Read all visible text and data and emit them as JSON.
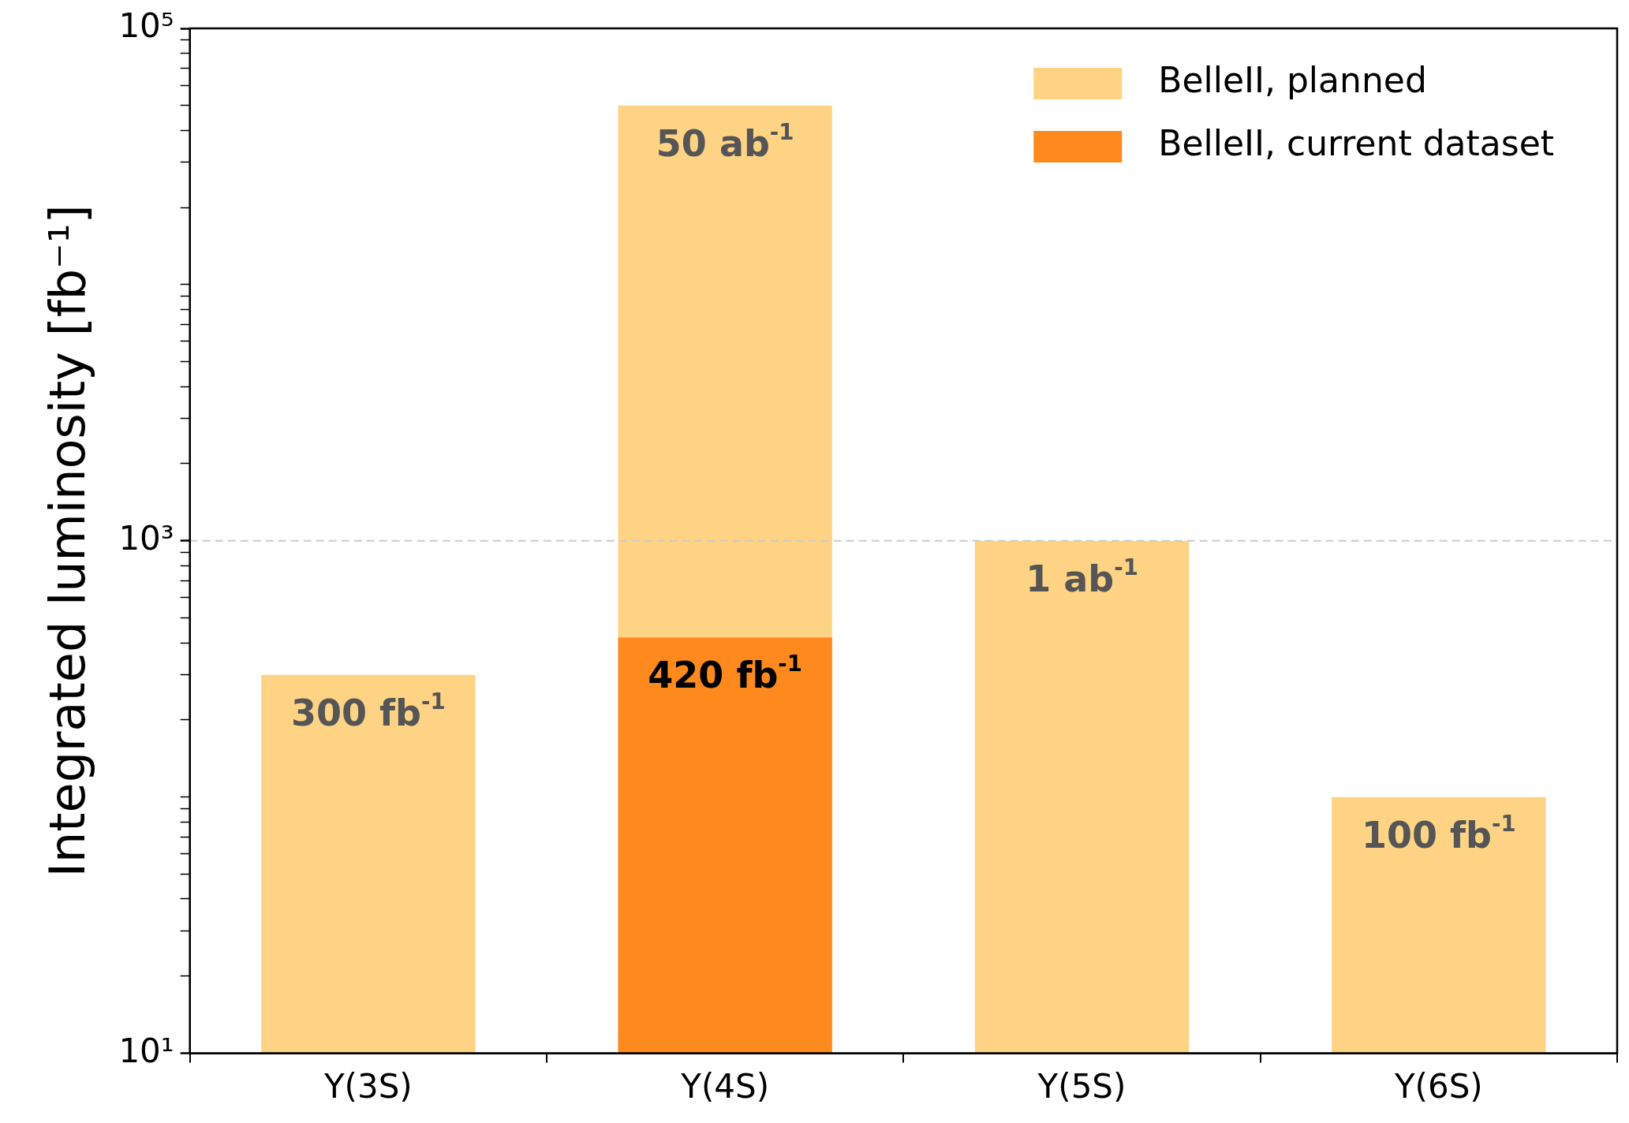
{
  "chart_data": {
    "type": "bar",
    "ylabel": "Integrated luminosity [fb⁻¹]",
    "categories": [
      "Υ(3S)",
      "Υ(4S)",
      "Υ(5S)",
      "Υ(6S)"
    ],
    "stacked": true,
    "log": "y",
    "grid": false,
    "legend": "top right",
    "series": [
      {
        "name": "BelleII, current dataset",
        "color": "#fe8a1e",
        "values": [
          null,
          420,
          null,
          null
        ],
        "value_labels": [
          null,
          "420 fb$^{-1}$",
          null,
          null
        ]
      },
      {
        "name": "BelleII, planned",
        "color": "#fed383",
        "values": [
          300,
          49580,
          1000,
          100
        ],
        "value_labels": [
          "300 fb$^{-1}$",
          null,
          null,
          "100 fb$^{-1}$"
        ]
      }
    ],
    "annotations": [
      {
        "text": "50 ab$^{-1}$",
        "x": "Υ(4S)",
        "y": 50000
      },
      {
        "text": "1 ab$^{-1}$",
        "x": "Υ(5S)",
        "y": 1000
      }
    ],
    "ylim": [
      10,
      100000
    ],
    "yticks": [
      {
        "value": 10,
        "label": "10¹"
      },
      {
        "value": 20,
        "label": null
      },
      {
        "value": 30,
        "label": null
      },
      {
        "value": 40,
        "label": null
      },
      {
        "value": 50,
        "label": null
      },
      {
        "value": 60,
        "label": null
      },
      {
        "value": 70,
        "label": null
      },
      {
        "value": 80,
        "label": null
      },
      {
        "value": 90,
        "label": null
      },
      {
        "value": 100,
        "label": null
      },
      {
        "value": 200,
        "label": null
      },
      {
        "value": 300,
        "label": null
      },
      {
        "value": 400,
        "label": null
      },
      {
        "value": 500,
        "label": null
      },
      {
        "value": 600,
        "label": null
      },
      {
        "value": 700,
        "label": null
      },
      {
        "value": 800,
        "label": null
      },
      {
        "value": 900,
        "label": null
      },
      {
        "value": 1000,
        "label": "10³"
      },
      {
        "value": 2000,
        "label": null
      },
      {
        "value": 3000,
        "label": null
      },
      {
        "value": 4000,
        "label": null
      },
      {
        "value": 5000,
        "label": null
      },
      {
        "value": 6000,
        "label": null
      },
      {
        "value": 7000,
        "label": null
      },
      {
        "value": 8000,
        "label": null
      },
      {
        "value": 9000,
        "label": null
      },
      {
        "value": 10000,
        "label": null
      },
      {
        "value": 20000,
        "label": null
      },
      {
        "value": 30000,
        "label": null
      },
      {
        "value": 40000,
        "label": null
      },
      {
        "value": 50000,
        "label": null
      },
      {
        "value": 60000,
        "label": null
      },
      {
        "value": 70000,
        "label": null
      },
      {
        "value": 80000,
        "label": null
      },
      {
        "value": 90000,
        "label": null
      },
      {
        "value": 100000,
        "label": "10⁵"
      }
    ],
    "ref_lines": [
      {
        "axis": "y",
        "value": 1000,
        "label": null,
        "color": "#cccccc",
        "line_style": "dashed"
      }
    ]
  }
}
